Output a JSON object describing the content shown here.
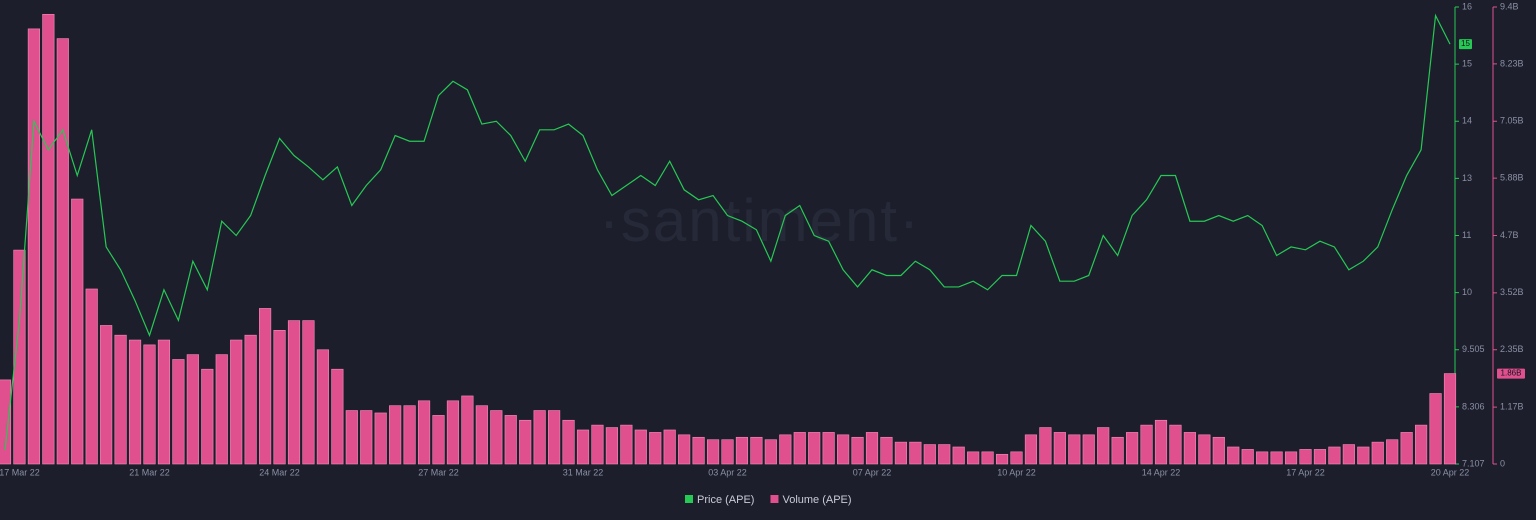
{
  "chart_data": {
    "type": "line-bar",
    "watermark": "·santiment·",
    "categories": [
      null,
      "17 Mar 22",
      null,
      null,
      null,
      null,
      null,
      null,
      null,
      null,
      "21 Mar 22",
      null,
      null,
      null,
      null,
      null,
      null,
      null,
      null,
      "24 Mar 22",
      null,
      null,
      null,
      null,
      null,
      null,
      null,
      null,
      null,
      null,
      "27 Mar 22",
      null,
      null,
      null,
      null,
      null,
      null,
      null,
      null,
      null,
      "31 Mar 22",
      null,
      null,
      null,
      null,
      null,
      null,
      null,
      null,
      null,
      "03 Apr 22",
      null,
      null,
      null,
      null,
      null,
      null,
      null,
      null,
      null,
      "07 Apr 22",
      null,
      null,
      null,
      null,
      null,
      null,
      null,
      null,
      null,
      "10 Apr 22",
      null,
      null,
      null,
      null,
      null,
      null,
      null,
      null,
      null,
      "14 Apr 22",
      null,
      null,
      null,
      null,
      null,
      null,
      null,
      null,
      null,
      "17 Apr 22",
      null,
      null,
      null,
      null,
      null,
      null,
      null,
      null,
      null,
      "20 Apr 22"
    ],
    "series": [
      {
        "name": "Price (APE)",
        "color": "#26c953",
        "kind": "line",
        "axis": "y",
        "badge": "15",
        "values": [
          7.4,
          9.76,
          14,
          13.5,
          13.85,
          13.05,
          13.85,
          10.8,
          10.4,
          9.93,
          9.63,
          10.05,
          9.76,
          10.55,
          10.05,
          11.5,
          11,
          11.7,
          13.05,
          13.7,
          13.4,
          13.2,
          12.95,
          13.2,
          12.05,
          12.75,
          13.15,
          13.75,
          13.65,
          13.65,
          14.45,
          14.7,
          14.55,
          13.95,
          14,
          13.75,
          13.3,
          13.85,
          13.85,
          13.95,
          13.75,
          13.15,
          12.4,
          12.75,
          13.05,
          12.75,
          13.3,
          12.6,
          12.25,
          12.4,
          11.7,
          11.5,
          11.2,
          10.55,
          11.7,
          12.05,
          11,
          10.9,
          10.4,
          10.1,
          10.4,
          10.3,
          10.3,
          10.55,
          10.4,
          10.1,
          10.1,
          10.2,
          10.05,
          10.3,
          10.3,
          11.35,
          10.9,
          10.2,
          10.2,
          10.3,
          11,
          10.65,
          11.7,
          12.25,
          13.05,
          13.05,
          11.5,
          11.5,
          11.7,
          11.5,
          11.7,
          11.35,
          10.65,
          10.8,
          10.75,
          10.9,
          10.8,
          10.4,
          10.55,
          10.8,
          11.9,
          13.05,
          13.5,
          15.85,
          15.35
        ]
      },
      {
        "name": "Volume (APE)",
        "color": "#e0508f",
        "kind": "bar",
        "axis": "y2",
        "badge": "1.86B",
        "values": [
          1.73,
          4.4,
          8.95,
          9.25,
          8.75,
          5.45,
          3.6,
          2.85,
          2.65,
          2.55,
          2.45,
          2.55,
          2.15,
          2.25,
          1.95,
          2.25,
          2.55,
          2.65,
          3.2,
          2.75,
          2.95,
          2.95,
          2.35,
          1.95,
          1.1,
          1.1,
          1.05,
          1.2,
          1.2,
          1.3,
          1.0,
          1.3,
          1.4,
          1.2,
          1.1,
          1.0,
          0.9,
          1.1,
          1.1,
          0.9,
          0.7,
          0.8,
          0.75,
          0.8,
          0.7,
          0.65,
          0.7,
          0.6,
          0.55,
          0.5,
          0.5,
          0.55,
          0.55,
          0.5,
          0.6,
          0.65,
          0.65,
          0.65,
          0.6,
          0.55,
          0.65,
          0.55,
          0.45,
          0.45,
          0.4,
          0.4,
          0.35,
          0.25,
          0.25,
          0.2,
          0.25,
          0.6,
          0.75,
          0.65,
          0.6,
          0.6,
          0.75,
          0.55,
          0.65,
          0.8,
          0.9,
          0.8,
          0.65,
          0.6,
          0.55,
          0.35,
          0.3,
          0.25,
          0.25,
          0.25,
          0.3,
          0.3,
          0.35,
          0.4,
          0.35,
          0.45,
          0.5,
          0.65,
          0.8,
          1.45,
          1.86
        ]
      }
    ],
    "ylim": [
      7.107,
      16
    ],
    "yticks": [
      7.107,
      8.306,
      9.505,
      10,
      11,
      13,
      14,
      15,
      16
    ],
    "y2lim": [
      0,
      9.4
    ],
    "y2ticks": [
      0,
      {
        "value": 1.17,
        "label": "1.17B"
      },
      {
        "value": 2.35,
        "label": "2.35B"
      },
      {
        "value": 3.52,
        "label": "3.52B"
      },
      {
        "value": 4.7,
        "label": "4.7B"
      },
      {
        "value": 5.88,
        "label": "5.88B"
      },
      {
        "value": 7.05,
        "label": "7.05B"
      },
      {
        "value": 8.23,
        "label": "8.23B"
      },
      {
        "value": 9.4,
        "label": "9.4B"
      }
    ]
  }
}
